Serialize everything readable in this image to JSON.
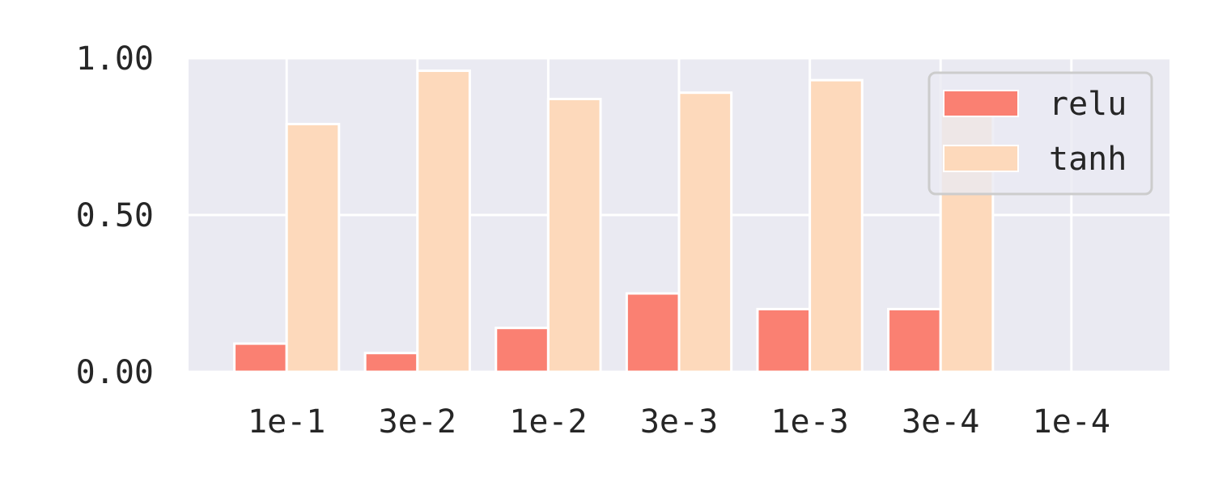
{
  "chart_data": {
    "type": "bar",
    "categories": [
      "1e-1",
      "3e-2",
      "1e-2",
      "3e-3",
      "1e-3",
      "3e-4",
      "1e-4"
    ],
    "series": [
      {
        "name": "relu",
        "values": [
          0.09,
          0.06,
          0.14,
          0.25,
          0.2,
          0.2,
          null
        ],
        "color": "#fa8072"
      },
      {
        "name": "tanh",
        "values": [
          0.79,
          0.96,
          0.87,
          0.89,
          0.93,
          0.82,
          null
        ],
        "color": "#fdd9bb"
      }
    ],
    "yticks": [
      "0.00",
      "0.50",
      "1.00"
    ],
    "ylim": [
      0,
      1
    ],
    "grid": true,
    "legend_position": "top-right",
    "background": "#eaeaf2"
  }
}
